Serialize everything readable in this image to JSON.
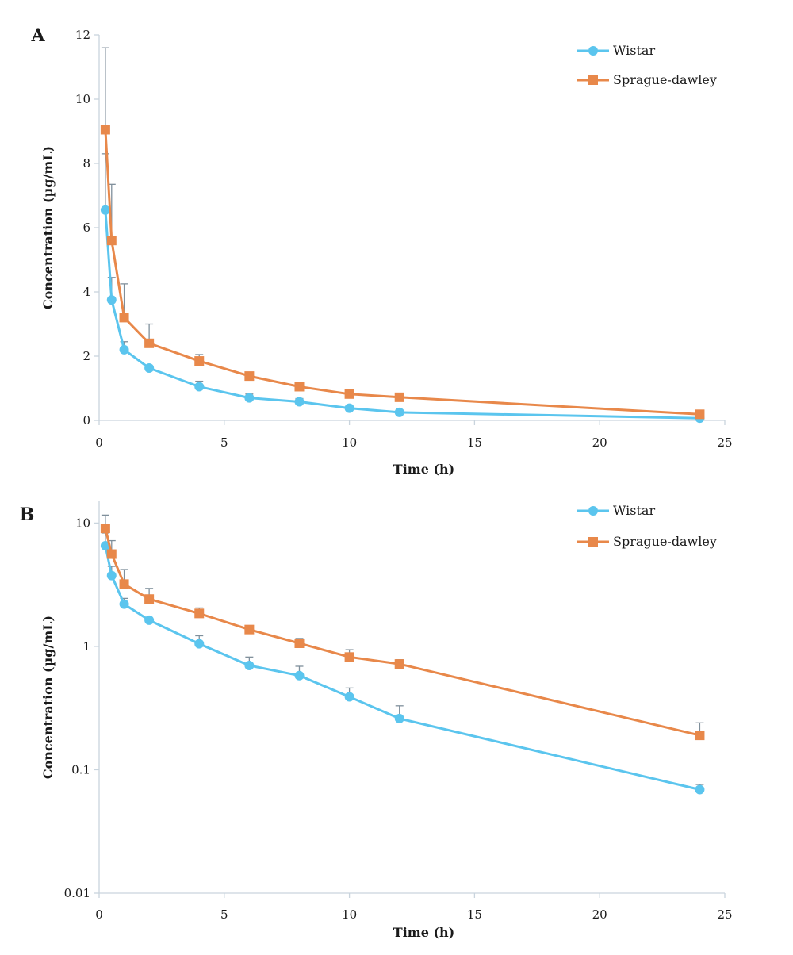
{
  "chart_data": [
    {
      "type": "line",
      "panel": "A",
      "xlabel": "Time (h)",
      "ylabel": "Concentration (µg/mL)",
      "xlim": [
        0,
        25
      ],
      "ylim": [
        0,
        12
      ],
      "yscale": "linear",
      "xticks": [
        "0",
        "5",
        "10",
        "15",
        "20",
        "25"
      ],
      "yticks": [
        "0",
        "2",
        "4",
        "6",
        "8",
        "10",
        "12"
      ],
      "grid": false,
      "legend_position": "top-right",
      "x": [
        0.25,
        0.5,
        1,
        2,
        4,
        6,
        8,
        10,
        12,
        24
      ],
      "series": [
        {
          "name": "Wistar",
          "color": "#5bc5ee",
          "marker": "circle",
          "values": [
            6.55,
            3.75,
            2.2,
            1.63,
            1.05,
            0.7,
            0.58,
            0.38,
            0.25,
            0.07
          ],
          "error_upper": [
            8.3,
            4.45,
            2.45,
            1.68,
            1.22,
            0.82,
            0.68,
            0.45,
            0.32,
            0.075
          ]
        },
        {
          "name": "Sprague-dawley",
          "color": "#e8884a",
          "marker": "square",
          "values": [
            9.05,
            5.6,
            3.2,
            2.4,
            1.85,
            1.38,
            1.05,
            0.82,
            0.72,
            0.19
          ],
          "error_upper": [
            11.6,
            7.35,
            4.25,
            3.0,
            2.05,
            1.45,
            1.15,
            0.95,
            0.78,
            0.24
          ]
        }
      ]
    },
    {
      "type": "line",
      "panel": "B",
      "xlabel": "Time (h)",
      "ylabel": "Concentration (µg/mL)",
      "xlim": [
        0,
        25
      ],
      "ylim": [
        0.01,
        15
      ],
      "yscale": "log",
      "xticks": [
        "0",
        "5",
        "10",
        "15",
        "20",
        "25"
      ],
      "yticks": [
        "0.01",
        "0.1",
        "1",
        "10"
      ],
      "grid": false,
      "legend_position": "top-right",
      "x": [
        0.25,
        0.5,
        1,
        2,
        4,
        6,
        8,
        10,
        12,
        24
      ],
      "series": [
        {
          "name": "Wistar",
          "color": "#5bc5ee",
          "marker": "circle",
          "values": [
            6.55,
            3.75,
            2.2,
            1.63,
            1.05,
            0.7,
            0.58,
            0.39,
            0.26,
            0.069
          ],
          "error_upper": [
            8.3,
            4.45,
            2.45,
            1.68,
            1.22,
            0.82,
            0.69,
            0.46,
            0.33,
            0.076
          ]
        },
        {
          "name": "Sprague-dawley",
          "color": "#e8884a",
          "marker": "square",
          "values": [
            9.05,
            5.6,
            3.2,
            2.42,
            1.85,
            1.37,
            1.06,
            0.82,
            0.72,
            0.19
          ],
          "error_upper": [
            11.6,
            7.2,
            4.2,
            2.95,
            2.05,
            1.45,
            1.16,
            0.94,
            0.78,
            0.24
          ]
        }
      ]
    }
  ]
}
